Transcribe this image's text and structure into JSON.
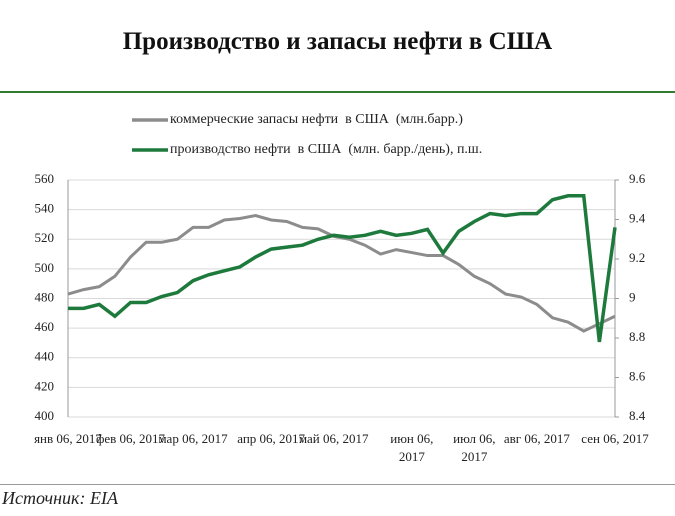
{
  "chart_data": {
    "type": "line",
    "title": "Производство и запасы нефти в США",
    "source": "Источник: EIA",
    "categories": [
      "янв 06, 2017",
      null,
      null,
      null,
      "фев 06, 2017",
      null,
      null,
      null,
      "мар 06, 2017",
      null,
      null,
      null,
      null,
      "апр 06, 2017",
      null,
      null,
      null,
      "май 06, 2017",
      null,
      null,
      null,
      null,
      "июн 06, 2017",
      null,
      null,
      null,
      "июл 06, 2017",
      null,
      null,
      null,
      "авг 06, 2017",
      null,
      null,
      null,
      null,
      "сен 06, 2017"
    ],
    "series": [
      {
        "name": "коммерческие запасы нефти  в США  (млн.барр.)",
        "color": "#8c8c8c",
        "values": [
          483,
          486,
          488,
          495,
          508,
          518,
          518,
          520,
          528,
          528,
          533,
          534,
          536,
          533,
          532,
          528,
          527,
          522,
          520,
          516,
          510,
          513,
          511,
          509,
          509,
          503,
          495,
          490,
          483,
          481,
          476,
          467,
          464,
          458,
          463,
          468
        ]
      },
      {
        "name": "производство нефти  в США  (млн. барр./день), п.ш.",
        "color": "#1e7a3c",
        "axis": "y2",
        "values": [
          8.95,
          8.95,
          8.97,
          8.91,
          8.98,
          8.98,
          9.01,
          9.03,
          9.09,
          9.12,
          9.14,
          9.16,
          9.21,
          9.25,
          9.26,
          9.27,
          9.3,
          9.32,
          9.31,
          9.32,
          9.34,
          9.32,
          9.33,
          9.35,
          9.23,
          9.34,
          9.39,
          9.43,
          9.42,
          9.43,
          9.43,
          9.5,
          9.52,
          9.52,
          8.78,
          9.36
        ]
      }
    ],
    "ylim": [
      400,
      560
    ],
    "yticks": [
      400,
      420,
      440,
      460,
      480,
      500,
      520,
      540,
      560
    ],
    "y2lim": [
      8.4,
      9.6
    ],
    "y2ticks": [
      8.4,
      8.6,
      8.8,
      9,
      9.2,
      9.4,
      9.6
    ],
    "grid": true
  }
}
